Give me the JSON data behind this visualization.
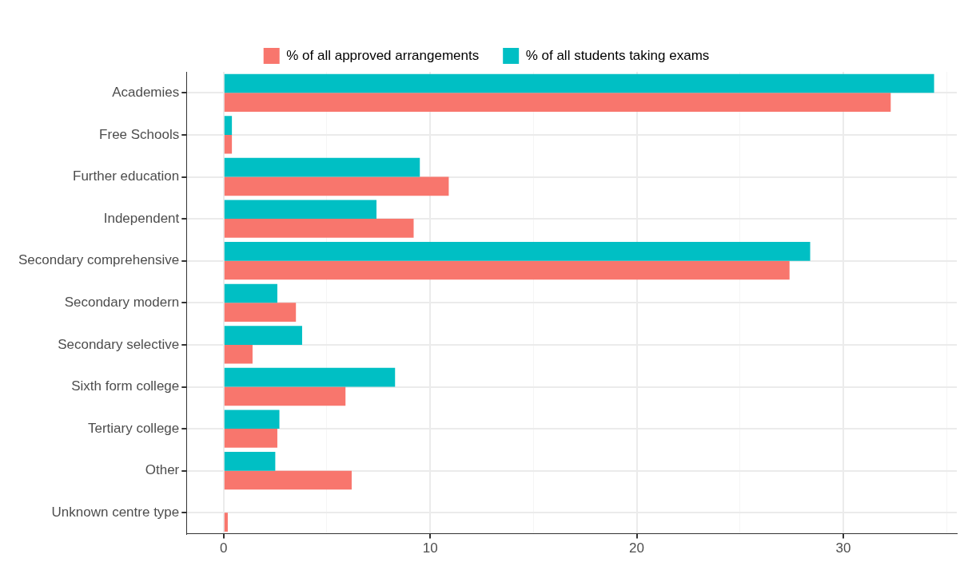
{
  "chart_data": {
    "type": "bar",
    "orientation": "horizontal",
    "categories": [
      "Academies",
      "Free Schools",
      "Further education",
      "Independent",
      "Secondary comprehensive",
      "Secondary modern",
      "Secondary selective",
      "Sixth form college",
      "Tertiary college",
      "Other",
      "Unknown centre type"
    ],
    "series": [
      {
        "name": "% of all approved arrangements",
        "color": "#f8766d",
        "values": [
          32.3,
          0.4,
          10.9,
          9.2,
          27.4,
          3.5,
          1.4,
          5.9,
          2.6,
          6.2,
          0.2
        ]
      },
      {
        "name": "% of all students taking exams",
        "color": "#00bfc4",
        "values": [
          34.4,
          0.4,
          9.5,
          7.4,
          28.4,
          2.6,
          3.8,
          8.3,
          2.7,
          2.5,
          0
        ]
      }
    ],
    "xlim": [
      -1.8,
      35.5
    ],
    "xticks": [
      0,
      {
        "value": 5,
        "label": null
      },
      10,
      {
        "value": 15,
        "label": null
      },
      20,
      {
        "value": 25,
        "label": null
      },
      30,
      {
        "value": 35,
        "label": null
      }
    ],
    "grid": true,
    "legend": "top"
  }
}
